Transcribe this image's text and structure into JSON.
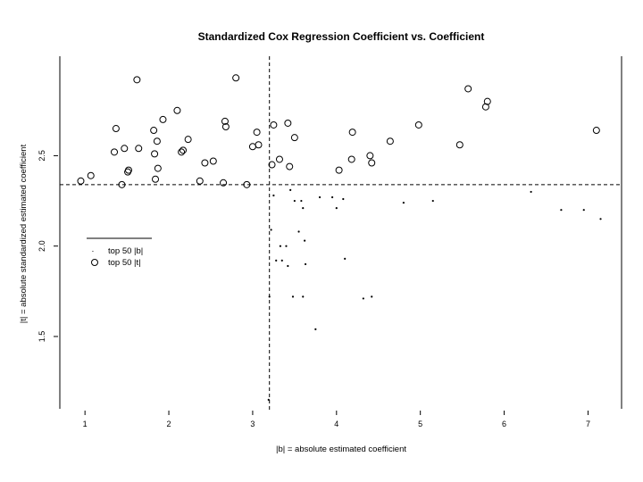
{
  "chart_data": {
    "type": "scatter",
    "title": "Standardized Cox Regression Coefficient vs. Coefficient",
    "xlabel": "|b| = absolute estimated coefficient",
    "ylabel": "|t| = absolute standardized estimated coefficient",
    "xlim": [
      0.7,
      7.4
    ],
    "ylim": [
      1.1,
      3.05
    ],
    "xticks": [
      1,
      2,
      3,
      4,
      5,
      6,
      7
    ],
    "yticks": [
      1.5,
      2.0,
      2.5
    ],
    "grid": false,
    "legend_position": "left-middle",
    "reference_lines": {
      "x": 3.2,
      "y": 2.34
    },
    "series": [
      {
        "name": "top 50 |b|",
        "marker": "dot",
        "points": [
          [
            3.19,
            1.15
          ],
          [
            3.2,
            1.72
          ],
          [
            3.22,
            2.09
          ],
          [
            3.25,
            2.28
          ],
          [
            3.28,
            1.92
          ],
          [
            3.33,
            2.0
          ],
          [
            3.35,
            1.92
          ],
          [
            3.4,
            2.0
          ],
          [
            3.42,
            1.89
          ],
          [
            3.45,
            2.31
          ],
          [
            3.48,
            1.72
          ],
          [
            3.5,
            2.25
          ],
          [
            3.55,
            2.08
          ],
          [
            3.58,
            2.25
          ],
          [
            3.6,
            1.72
          ],
          [
            3.6,
            2.21
          ],
          [
            3.62,
            2.03
          ],
          [
            3.63,
            1.9
          ],
          [
            3.75,
            1.54
          ],
          [
            3.8,
            2.27
          ],
          [
            3.95,
            2.27
          ],
          [
            4.0,
            2.21
          ],
          [
            4.08,
            2.26
          ],
          [
            4.1,
            1.93
          ],
          [
            4.32,
            1.71
          ],
          [
            4.42,
            1.72
          ],
          [
            4.8,
            2.24
          ],
          [
            5.15,
            2.25
          ],
          [
            6.32,
            2.3
          ],
          [
            6.68,
            2.2
          ],
          [
            6.95,
            2.2
          ],
          [
            7.15,
            2.15
          ]
        ]
      },
      {
        "name": "top 50 |t|",
        "marker": "circle",
        "points": [
          [
            0.95,
            2.36
          ],
          [
            1.07,
            2.39
          ],
          [
            1.35,
            2.52
          ],
          [
            1.37,
            2.65
          ],
          [
            1.44,
            2.34
          ],
          [
            1.47,
            2.54
          ],
          [
            1.51,
            2.41
          ],
          [
            1.52,
            2.42
          ],
          [
            1.62,
            2.92
          ],
          [
            1.64,
            2.54
          ],
          [
            1.82,
            2.64
          ],
          [
            1.83,
            2.51
          ],
          [
            1.84,
            2.37
          ],
          [
            1.86,
            2.58
          ],
          [
            1.87,
            2.43
          ],
          [
            1.93,
            2.7
          ],
          [
            2.1,
            2.75
          ],
          [
            2.15,
            2.52
          ],
          [
            2.17,
            2.53
          ],
          [
            2.23,
            2.59
          ],
          [
            2.37,
            2.36
          ],
          [
            2.43,
            2.46
          ],
          [
            2.53,
            2.47
          ],
          [
            2.65,
            2.35
          ],
          [
            2.67,
            2.69
          ],
          [
            2.68,
            2.66
          ],
          [
            2.8,
            2.93
          ],
          [
            2.93,
            2.34
          ],
          [
            3.0,
            2.55
          ],
          [
            3.05,
            2.63
          ],
          [
            3.07,
            2.56
          ],
          [
            3.23,
            2.45
          ],
          [
            3.25,
            2.67
          ],
          [
            3.32,
            2.48
          ],
          [
            3.42,
            2.68
          ],
          [
            3.44,
            2.44
          ],
          [
            3.5,
            2.6
          ],
          [
            4.03,
            2.42
          ],
          [
            4.18,
            2.48
          ],
          [
            4.19,
            2.63
          ],
          [
            4.4,
            2.5
          ],
          [
            4.42,
            2.46
          ],
          [
            4.64,
            2.58
          ],
          [
            4.98,
            2.67
          ],
          [
            5.47,
            2.56
          ],
          [
            5.57,
            2.87
          ],
          [
            5.78,
            2.77
          ],
          [
            5.8,
            2.8
          ],
          [
            7.1,
            2.64
          ]
        ]
      }
    ]
  }
}
